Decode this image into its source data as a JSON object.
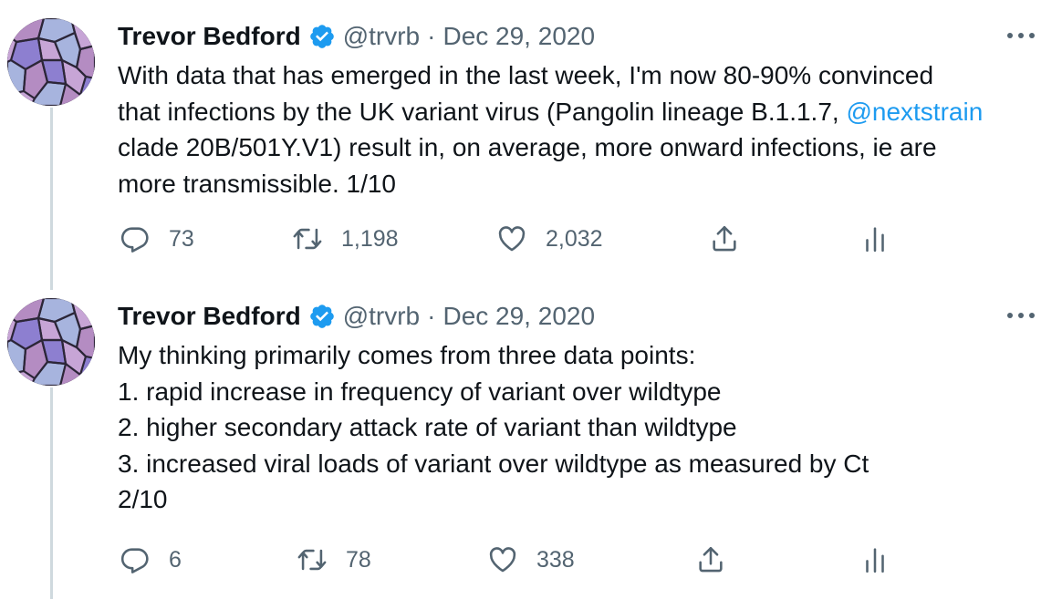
{
  "tweets": [
    {
      "author": {
        "name": "Trevor Bedford",
        "handle": "@trvrb"
      },
      "separator": "·",
      "date": "Dec 29, 2020",
      "text_lines": [
        [
          {
            "t": "With data that has emerged in the last week, I'm now 80-90% convinced"
          }
        ],
        [
          {
            "t": "that infections by the UK variant virus (Pangolin lineage B.1.1.7, "
          },
          {
            "t": "@nextstrain",
            "mention": true
          }
        ],
        [
          {
            "t": "clade 20B/501Y.V1) result in, on average, more onward infections, ie are"
          }
        ],
        [
          {
            "t": "more transmissible. 1/10"
          }
        ]
      ],
      "actions": {
        "replies": "73",
        "retweets": "1,198",
        "likes": "2,032"
      }
    },
    {
      "author": {
        "name": "Trevor Bedford",
        "handle": "@trvrb"
      },
      "separator": "·",
      "date": "Dec 29, 2020",
      "text_lines": [
        [
          {
            "t": "My thinking primarily comes from three data points:"
          }
        ],
        [
          {
            "t": "1. rapid increase in frequency of variant over wildtype"
          }
        ],
        [
          {
            "t": "2. higher secondary attack rate of variant than wildtype"
          }
        ],
        [
          {
            "t": "3. increased viral loads of variant over wildtype as measured by Ct"
          }
        ],
        [
          {
            "t": "2/10"
          }
        ]
      ],
      "actions": {
        "replies": "6",
        "retweets": "78",
        "likes": "338"
      }
    }
  ],
  "icons": {
    "reply": "reply-icon",
    "retweet": "retweet-icon",
    "like": "like-icon",
    "share": "share-icon",
    "analytics": "analytics-icon",
    "more": "more-icon",
    "verified": "verified-badge-icon"
  },
  "colors": {
    "text": "#0f1419",
    "secondary": "#536471",
    "accent": "#1d9bf0",
    "thread_line": "#cfd9de"
  }
}
